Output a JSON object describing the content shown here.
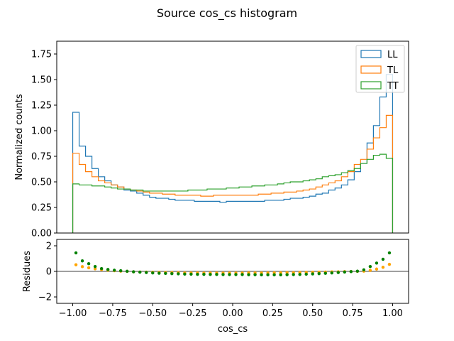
{
  "chart_data": [
    {
      "type": "line",
      "title": "Source cos_cs histogram",
      "xlabel": "",
      "ylabel": "Normalized counts",
      "xlim": [
        -1.1,
        1.1
      ],
      "ylim": [
        0.0,
        1.875
      ],
      "y_ticks": [
        "0.00",
        "0.25",
        "0.50",
        "0.75",
        "1.00",
        "1.25",
        "1.50",
        "1.75"
      ],
      "legend_position": "upper right",
      "bin_edges": [
        -1.0,
        -0.96,
        -0.92,
        -0.88,
        -0.84,
        -0.8,
        -0.76,
        -0.72,
        -0.68,
        -0.64,
        -0.6,
        -0.56,
        -0.52,
        -0.48,
        -0.44,
        -0.4,
        -0.36,
        -0.32,
        -0.28,
        -0.24,
        -0.2,
        -0.16,
        -0.12,
        -0.08,
        -0.04,
        0.0,
        0.04,
        0.08,
        0.12,
        0.16,
        0.2,
        0.24,
        0.28,
        0.32,
        0.36,
        0.4,
        0.44,
        0.48,
        0.52,
        0.56,
        0.6,
        0.64,
        0.68,
        0.72,
        0.76,
        0.8,
        0.84,
        0.88,
        0.92,
        0.96,
        1.0
      ],
      "series": [
        {
          "name": "LL",
          "color": "#1f77b4",
          "values": [
            1.18,
            0.85,
            0.75,
            0.63,
            0.55,
            0.51,
            0.47,
            0.45,
            0.42,
            0.41,
            0.39,
            0.37,
            0.35,
            0.34,
            0.34,
            0.33,
            0.32,
            0.32,
            0.32,
            0.31,
            0.31,
            0.31,
            0.31,
            0.3,
            0.31,
            0.31,
            0.31,
            0.31,
            0.31,
            0.31,
            0.32,
            0.32,
            0.32,
            0.33,
            0.34,
            0.34,
            0.35,
            0.36,
            0.38,
            0.39,
            0.42,
            0.44,
            0.47,
            0.52,
            0.6,
            0.68,
            0.88,
            1.05,
            1.33,
            1.55
          ]
        },
        {
          "name": "TL",
          "color": "#ff7f0e",
          "values": [
            0.78,
            0.67,
            0.6,
            0.55,
            0.51,
            0.49,
            0.47,
            0.45,
            0.43,
            0.42,
            0.41,
            0.4,
            0.39,
            0.39,
            0.38,
            0.38,
            0.37,
            0.37,
            0.37,
            0.37,
            0.36,
            0.36,
            0.37,
            0.37,
            0.37,
            0.37,
            0.37,
            0.37,
            0.37,
            0.38,
            0.38,
            0.39,
            0.39,
            0.4,
            0.4,
            0.41,
            0.42,
            0.43,
            0.45,
            0.47,
            0.49,
            0.51,
            0.55,
            0.6,
            0.67,
            0.72,
            0.82,
            0.93,
            1.03,
            1.15
          ]
        },
        {
          "name": "TT",
          "color": "#2ca02c",
          "values": [
            0.48,
            0.47,
            0.47,
            0.46,
            0.46,
            0.45,
            0.44,
            0.43,
            0.43,
            0.42,
            0.42,
            0.41,
            0.41,
            0.41,
            0.41,
            0.41,
            0.41,
            0.41,
            0.42,
            0.42,
            0.42,
            0.43,
            0.43,
            0.43,
            0.44,
            0.44,
            0.45,
            0.45,
            0.46,
            0.46,
            0.47,
            0.47,
            0.48,
            0.49,
            0.5,
            0.5,
            0.51,
            0.52,
            0.53,
            0.55,
            0.56,
            0.57,
            0.59,
            0.61,
            0.63,
            0.68,
            0.72,
            0.76,
            0.77,
            0.73
          ]
        }
      ]
    },
    {
      "type": "scatter",
      "title": "",
      "xlabel": "cos_cs",
      "ylabel": "Residues",
      "xlim": [
        -1.1,
        1.1
      ],
      "ylim": [
        -2.5,
        2.5
      ],
      "x_ticks": [
        "−1.00",
        "−0.75",
        "−0.50",
        "−0.25",
        "0.00",
        "0.25",
        "0.50",
        "0.75",
        "1.00"
      ],
      "x_tick_values": [
        -1.0,
        -0.75,
        -0.5,
        -0.25,
        0.0,
        0.25,
        0.5,
        0.75,
        1.0
      ],
      "y_ticks": [
        "−2",
        "0",
        "2"
      ],
      "y_tick_values": [
        -2,
        0,
        2
      ],
      "reference_line": 0,
      "x": [
        -0.98,
        -0.94,
        -0.9,
        -0.86,
        -0.82,
        -0.78,
        -0.74,
        -0.7,
        -0.66,
        -0.62,
        -0.58,
        -0.54,
        -0.5,
        -0.46,
        -0.42,
        -0.38,
        -0.34,
        -0.3,
        -0.26,
        -0.22,
        -0.18,
        -0.14,
        -0.1,
        -0.06,
        -0.02,
        0.02,
        0.06,
        0.1,
        0.14,
        0.18,
        0.22,
        0.26,
        0.3,
        0.34,
        0.38,
        0.42,
        0.46,
        0.5,
        0.54,
        0.58,
        0.62,
        0.66,
        0.7,
        0.74,
        0.78,
        0.82,
        0.86,
        0.9,
        0.94,
        0.98
      ],
      "series": [
        {
          "color": "#ffa500",
          "values": [
            0.52,
            0.37,
            0.28,
            0.2,
            0.14,
            0.09,
            0.05,
            0.02,
            0.0,
            -0.03,
            -0.05,
            -0.06,
            -0.07,
            -0.08,
            -0.09,
            -0.1,
            -0.11,
            -0.12,
            -0.12,
            -0.12,
            -0.13,
            -0.13,
            -0.13,
            -0.13,
            -0.13,
            -0.13,
            -0.13,
            -0.12,
            -0.12,
            -0.12,
            -0.12,
            -0.11,
            -0.11,
            -0.1,
            -0.1,
            -0.09,
            -0.08,
            -0.07,
            -0.06,
            -0.05,
            -0.04,
            -0.03,
            -0.02,
            -0.01,
            0.0,
            0.02,
            0.08,
            0.18,
            0.32,
            0.55
          ]
        },
        {
          "color": "#008000",
          "values": [
            1.45,
            0.82,
            0.6,
            0.38,
            0.22,
            0.15,
            0.09,
            0.05,
            0.01,
            -0.03,
            -0.06,
            -0.09,
            -0.12,
            -0.14,
            -0.16,
            -0.18,
            -0.19,
            -0.21,
            -0.22,
            -0.23,
            -0.23,
            -0.24,
            -0.24,
            -0.25,
            -0.25,
            -0.25,
            -0.25,
            -0.26,
            -0.26,
            -0.27,
            -0.27,
            -0.27,
            -0.27,
            -0.26,
            -0.25,
            -0.24,
            -0.22,
            -0.2,
            -0.18,
            -0.15,
            -0.12,
            -0.09,
            -0.05,
            -0.02,
            0.02,
            0.12,
            0.38,
            0.65,
            0.95,
            1.45
          ]
        }
      ]
    }
  ]
}
